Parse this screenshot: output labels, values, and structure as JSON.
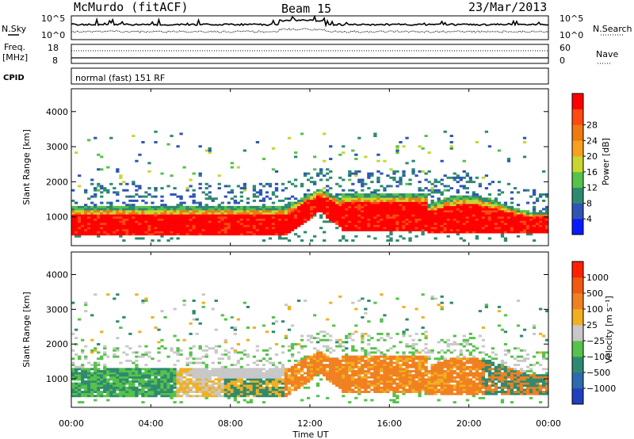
{
  "header": {
    "station": "McMurdo (fitACF)",
    "beam": "Beam 15",
    "date": "23/Mar/2013"
  },
  "strip_panels": {
    "nsky_label": "N.Sky",
    "nsearch_label": "N.Search",
    "noise_ticks": [
      "10^5",
      "10^0"
    ],
    "freq_label_line1": "Freq.",
    "freq_label_line2": "[MHz]",
    "freq_ticks": [
      18,
      8
    ],
    "nave_ticks": [
      60,
      0
    ],
    "nave_label": "Nave",
    "cpid_label": "CPID",
    "cpid_text": "normal (fast) 151 RF"
  },
  "chart_data": [
    {
      "type": "heatmap",
      "title": "",
      "ylabel": "Slant Range [km]",
      "xlabel": "",
      "ylim": [
        180,
        4650
      ],
      "yticks": [
        1000,
        2000,
        3000,
        4000
      ],
      "colorbar": {
        "label": "Power [dB]",
        "ticks": [
          "4",
          "8",
          "12",
          "16",
          "20",
          "24",
          "28"
        ],
        "colors": [
          "#0a1aff",
          "#2e55b5",
          "#2e8a6e",
          "#56c24a",
          "#c8d630",
          "#f6a020",
          "#f07a10",
          "#ff4a10",
          "#ff0000"
        ]
      }
    },
    {
      "type": "heatmap",
      "title": "",
      "ylabel": "Slant Range [km]",
      "xlabel": "Time UT",
      "ylim": [
        180,
        4650
      ],
      "yticks": [
        1000,
        2000,
        3000,
        4000
      ],
      "colorbar": {
        "label": "Velocity [m s⁻¹]",
        "ticks": [
          "1000",
          "500",
          "100",
          "25",
          "−25",
          "−100",
          "−500",
          "−1000"
        ],
        "colors": [
          "#2040c0",
          "#2e6ab0",
          "#2e8a6e",
          "#56c24a",
          "#c8c8c8",
          "#f0b020",
          "#f08020",
          "#f05a10",
          "#ff2000"
        ]
      }
    }
  ],
  "time_axis": {
    "label": "Time UT",
    "ticks": [
      "00:00",
      "04:00",
      "08:00",
      "12:00",
      "16:00",
      "20:00",
      "00:00"
    ]
  }
}
